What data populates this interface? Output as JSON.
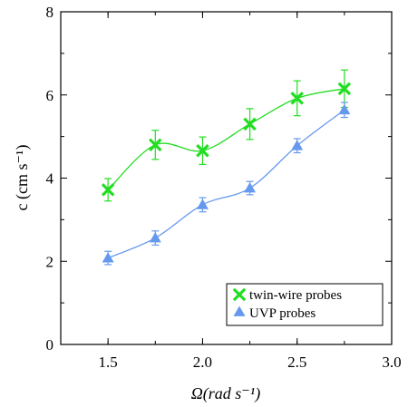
{
  "chart_data": {
    "type": "scatter",
    "title": "",
    "xlabel": "Ω(rad s⁻¹)",
    "ylabel": "c (cm s⁻¹)",
    "xlim": [
      1.25,
      3.0
    ],
    "ylim": [
      0,
      8
    ],
    "x_ticks": [
      "1.5",
      "2.0",
      "2.5",
      "3.0"
    ],
    "y_ticks": [
      "0",
      "2",
      "4",
      "6",
      "8"
    ],
    "grid": false,
    "legend_position": "bottom-right",
    "series": [
      {
        "name": "twin-wire probes",
        "marker": "x-cross",
        "color": "#22dd22",
        "x": [
          1.5,
          1.75,
          2.0,
          2.25,
          2.5,
          2.75
        ],
        "y": [
          3.72,
          4.8,
          4.66,
          5.3,
          5.92,
          6.15
        ],
        "err": [
          0.27,
          0.35,
          0.33,
          0.37,
          0.42,
          0.45
        ]
      },
      {
        "name": "UVP probes",
        "marker": "triangle",
        "color": "#6699ee",
        "x": [
          1.5,
          1.75,
          2.0,
          2.25,
          2.5,
          2.75
        ],
        "y": [
          2.08,
          2.56,
          3.36,
          3.76,
          4.78,
          5.64
        ],
        "err": [
          0.16,
          0.17,
          0.17,
          0.16,
          0.17,
          0.18
        ]
      }
    ]
  }
}
